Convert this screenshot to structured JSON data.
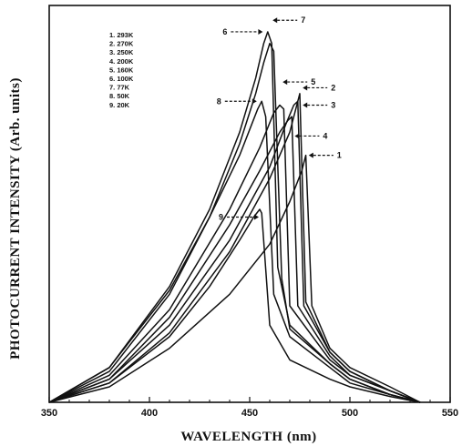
{
  "chart_data": {
    "type": "line",
    "title": "",
    "xlabel": "WAVELENGTH (nm)",
    "ylabel": "PHOTOCURRENT INTENSITY (Arb. units)",
    "xlim": [
      350,
      550
    ],
    "ylim": [
      0,
      1
    ],
    "x_ticks": [
      "350",
      "400",
      "450",
      "500",
      "550"
    ],
    "grid": false,
    "legend_entries": [
      "1. 293K",
      "2. 270K",
      "3. 250K",
      "4. 200K",
      "5. 160K",
      "6. 100K",
      "7.   77K",
      "8.   50K",
      "9.   20K"
    ],
    "series": [
      {
        "name": "1. 293K",
        "callout": "1",
        "x": [
          350,
          380,
          410,
          440,
          460,
          470,
          476,
          478,
          481,
          490,
          500,
          520,
          535
        ],
        "y": [
          0.0,
          0.04,
          0.14,
          0.28,
          0.41,
          0.52,
          0.6,
          0.64,
          0.25,
          0.14,
          0.09,
          0.04,
          0.0
        ]
      },
      {
        "name": "2. 270K",
        "callout": "2",
        "x": [
          350,
          380,
          410,
          440,
          460,
          470,
          474,
          475,
          478,
          490,
          500,
          520,
          535
        ],
        "y": [
          0.0,
          0.05,
          0.18,
          0.39,
          0.58,
          0.7,
          0.78,
          0.8,
          0.26,
          0.13,
          0.08,
          0.03,
          0.0
        ]
      },
      {
        "name": "3. 250K",
        "callout": "3",
        "x": [
          350,
          380,
          410,
          440,
          460,
          468,
          472,
          474,
          477,
          490,
          500,
          520,
          535
        ],
        "y": [
          0.0,
          0.06,
          0.2,
          0.42,
          0.61,
          0.72,
          0.77,
          0.78,
          0.25,
          0.13,
          0.08,
          0.03,
          0.0
        ]
      },
      {
        "name": "4. 200K",
        "callout": "4",
        "x": [
          350,
          380,
          410,
          440,
          455,
          465,
          469,
          471,
          474,
          490,
          500,
          520,
          535
        ],
        "y": [
          0.0,
          0.06,
          0.22,
          0.46,
          0.6,
          0.7,
          0.73,
          0.74,
          0.25,
          0.12,
          0.07,
          0.03,
          0.0
        ]
      },
      {
        "name": "5. 160K",
        "callout": "5",
        "x": [
          350,
          380,
          410,
          440,
          455,
          462,
          465,
          467,
          470,
          490,
          500,
          520,
          535
        ],
        "y": [
          0.0,
          0.07,
          0.24,
          0.5,
          0.66,
          0.75,
          0.77,
          0.76,
          0.25,
          0.11,
          0.07,
          0.03,
          0.0
        ]
      },
      {
        "name": "6. 100K",
        "callout": "6",
        "x": [
          350,
          380,
          410,
          430,
          445,
          453,
          457,
          459,
          461,
          464,
          470,
          490,
          500,
          520,
          535
        ],
        "y": [
          0.0,
          0.09,
          0.3,
          0.5,
          0.7,
          0.84,
          0.93,
          0.96,
          0.93,
          0.35,
          0.2,
          0.1,
          0.06,
          0.02,
          0.0
        ]
      },
      {
        "name": "7.   77K",
        "callout": "7",
        "x": [
          350,
          380,
          410,
          430,
          445,
          453,
          457,
          460,
          462,
          466,
          470,
          490,
          500,
          520,
          535
        ],
        "y": [
          0.0,
          0.08,
          0.28,
          0.48,
          0.67,
          0.8,
          0.88,
          0.93,
          0.91,
          0.32,
          0.19,
          0.1,
          0.06,
          0.02,
          0.0
        ]
      },
      {
        "name": "8.   50K",
        "callout": "8",
        "x": [
          350,
          380,
          410,
          430,
          445,
          451,
          454,
          456,
          458,
          462,
          470,
          490,
          500,
          520,
          535
        ],
        "y": [
          0.0,
          0.09,
          0.29,
          0.48,
          0.64,
          0.72,
          0.76,
          0.78,
          0.74,
          0.28,
          0.17,
          0.09,
          0.05,
          0.02,
          0.0
        ]
      },
      {
        "name": "9.   20K",
        "callout": "9",
        "x": [
          350,
          380,
          410,
          430,
          445,
          452,
          455,
          456,
          460,
          470,
          490,
          500,
          520,
          535
        ],
        "y": [
          0.0,
          0.05,
          0.17,
          0.3,
          0.42,
          0.48,
          0.5,
          0.49,
          0.2,
          0.11,
          0.06,
          0.04,
          0.015,
          0.0
        ]
      }
    ]
  }
}
